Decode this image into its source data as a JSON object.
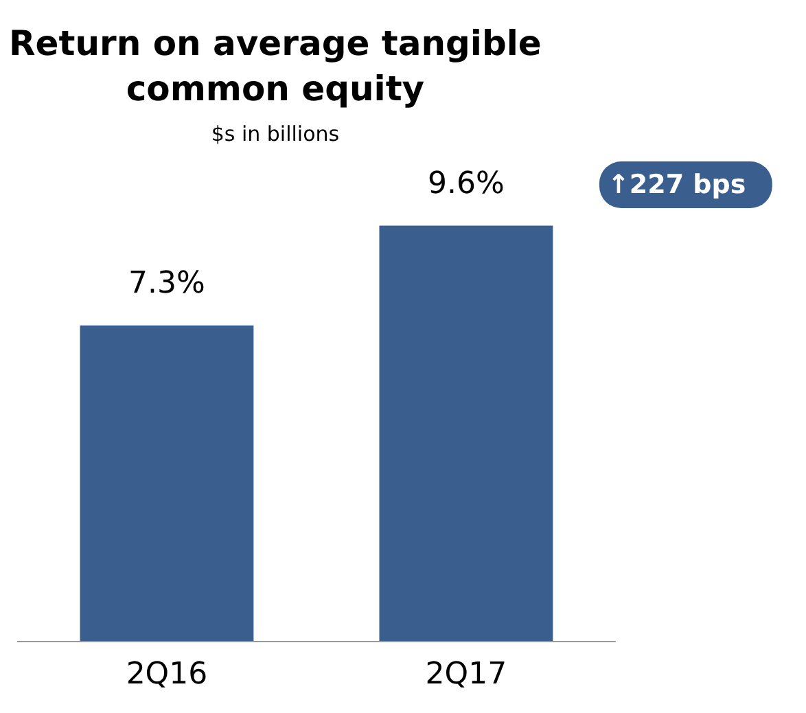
{
  "chart_data": {
    "type": "bar",
    "title": "Return on average tangible common equity",
    "subtitle": "$s in billions",
    "categories": [
      "2Q16",
      "2Q17"
    ],
    "values": [
      7.3,
      9.6
    ],
    "value_labels": [
      "7.3%",
      "9.6%"
    ],
    "color": "#3a5f8f",
    "annotations": [
      "↑227 bps"
    ]
  }
}
